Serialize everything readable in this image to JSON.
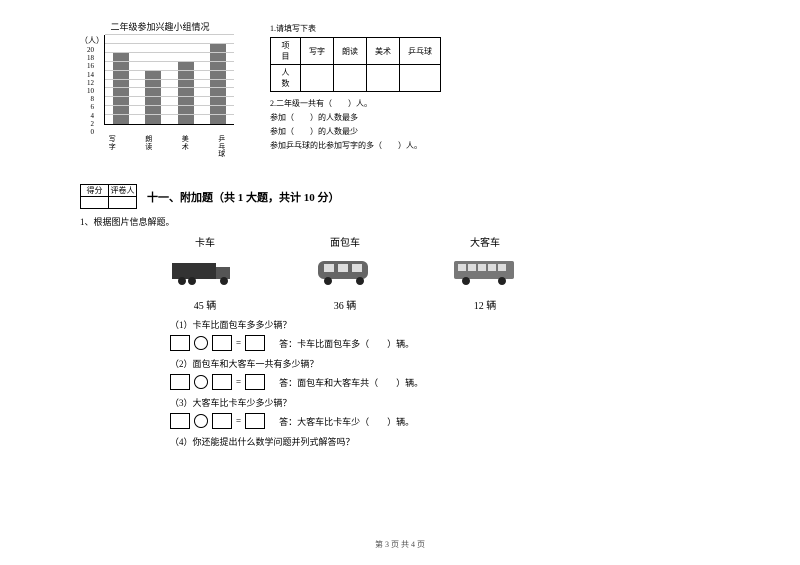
{
  "chart": {
    "title": "二年级参加兴趣小组情况",
    "ylabel": "（人）",
    "ymax": 20,
    "ytick_step": 2,
    "yticks": [
      "20",
      "18",
      "16",
      "14",
      "12",
      "10",
      "8",
      "6",
      "4",
      "2",
      "0"
    ],
    "categories": [
      "写\n字",
      "朗\n读",
      "美\n术",
      "乒\n乓\n球"
    ],
    "values": [
      16,
      12,
      14,
      18
    ],
    "bar_color": "#777777",
    "grid_color": "#cccccc",
    "background_color": "#ffffff"
  },
  "q1_table": {
    "caption": "1.请填写下表",
    "header_label": "项目",
    "row_label": "人数",
    "columns": [
      "写字",
      "朗读",
      "美术",
      "乒乓球"
    ]
  },
  "q1_lines": {
    "l2": "2.二年级一共有（　　）人。",
    "l3a": "参加（　　）的人数最多",
    "l3b": "参加（　　）的人数最少",
    "l3c": "参加乒乓球的比参加写字的多（　　）人。"
  },
  "score_labels": {
    "score": "得分",
    "grader": "评卷人"
  },
  "section": {
    "title": "十一、附加题（共 1 大题，共计 10 分）",
    "q_lead": "1、根据图片信息解题。"
  },
  "vehicles": {
    "truck": {
      "label": "卡车",
      "count": "45 辆"
    },
    "van": {
      "label": "面包车",
      "count": "36 辆"
    },
    "bus": {
      "label": "大客车",
      "count": "12 辆"
    }
  },
  "subq": {
    "q1": "（1）卡车比面包车多多少辆？",
    "a1": "答：卡车比面包车多（　　）辆。",
    "q2": "（2）面包车和大客车一共有多少辆？",
    "a2": "答：面包车和大客车共（　　）辆。",
    "q3": "（3）大客车比卡车少多少辆？",
    "a3": "答：大客车比卡车少（　　）辆。",
    "q4": "（4）你还能提出什么数学问题并列式解答吗？"
  },
  "eq": {
    "equals": "="
  },
  "footer": "第 3 页 共 4 页"
}
